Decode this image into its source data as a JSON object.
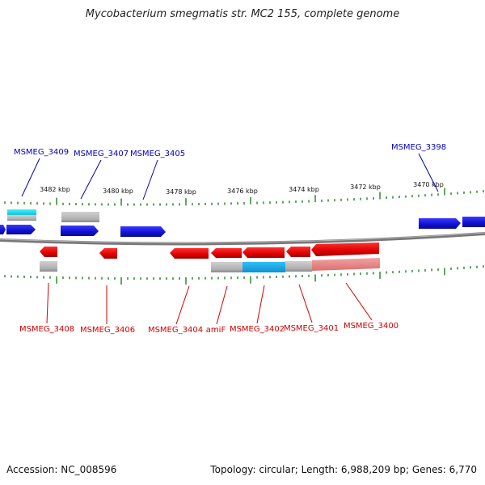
{
  "title": "Mycobacterium smegmatis str. MC2 155, complete genome",
  "footer": {
    "accession": "Accession: NC_008596",
    "summary": "Topology: circular; Length: 6,988,209 bp; Genes: 6,770"
  },
  "colors": {
    "forward_gene": "#1a1ad8",
    "reverse_gene": "#e01010",
    "forward_label": "#0000c0",
    "reverse_label": "#d00000",
    "backbone": "#808080",
    "ticks": "#2a8a2a",
    "feature_gray": "#b8b8b8",
    "feature_cyan": "#30d8e8",
    "feature_blue": "#1aa8e0",
    "feature_pink": "#e88a8a"
  },
  "scale_labels": [
    "3482 kbp",
    "3480 kbp",
    "3478 kbp",
    "3476 kbp",
    "3474 kbp",
    "3472 kbp",
    "3470 kbp"
  ],
  "genes": {
    "forward": [
      "MSMEG_3409",
      "MSMEG_3407",
      "MSMEG_3405",
      "MSMEG_3398"
    ],
    "reverse": [
      "MSMEG_3408",
      "MSMEG_3406",
      "MSMEG_3404",
      "amiF",
      "MSMEG_3402",
      "MSMEG_3401",
      "MSMEG_3400"
    ]
  }
}
